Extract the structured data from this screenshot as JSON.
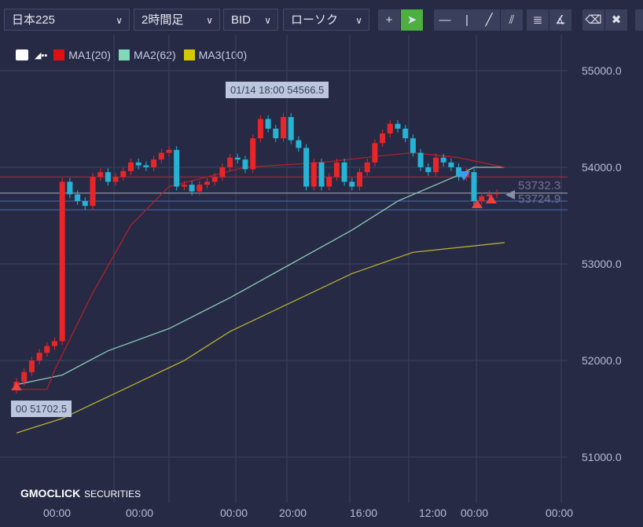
{
  "toolbar": {
    "symbol": "日本225",
    "timeframe": "2時間足",
    "price_type": "BID",
    "chart_type": "ローソク",
    "tools": [
      {
        "name": "crosshair-icon",
        "glyph": "+"
      },
      {
        "name": "pointer-icon",
        "glyph": "➤",
        "active": true
      },
      {
        "name": "horizontal-line-icon",
        "glyph": "—"
      },
      {
        "name": "vertical-line-icon",
        "glyph": "|"
      },
      {
        "name": "trend-line-icon",
        "glyph": "╱"
      },
      {
        "name": "parallel-lines-icon",
        "glyph": "⫽"
      },
      {
        "name": "fibonacci-retracement-icon",
        "glyph": "≣"
      },
      {
        "name": "fibonacci-fan-icon",
        "glyph": "∡"
      },
      {
        "name": "eraser-icon",
        "glyph": "⌫"
      },
      {
        "name": "delete-all-icon",
        "glyph": "✖"
      }
    ]
  },
  "legend": [
    {
      "label": "MA1(20)",
      "color": "#e01010"
    },
    {
      "label": "MA2(62)",
      "color": "#80d8b8"
    },
    {
      "label": "MA3(100)",
      "color": "#d4c800"
    }
  ],
  "colors": {
    "up": "#e8262a",
    "down": "#26b3d4",
    "ma1": "#b0202a",
    "ma2": "#8ccab8",
    "ma3": "#b8b030"
  },
  "y_axis": [
    "55000.0",
    "54000.0",
    "53000.0",
    "52000.0",
    "51000.0"
  ],
  "x_axis": [
    "00:00",
    "00:00",
    "00:00",
    "20:00",
    "16:00",
    "12:00",
    "00:00",
    "00:00"
  ],
  "tooltips": {
    "high": "01/14 18:00 54566.5",
    "low": "00 51702.5"
  },
  "price_labels": [
    "53732.3",
    "53724.9"
  ],
  "lines": {
    "red": 53900,
    "grey": 53732.3,
    "blue1": 53650,
    "blue2": 53560
  },
  "candles_close": [
    51780,
    51880,
    52000,
    52080,
    52150,
    52200,
    53850,
    53720,
    53650,
    53600,
    53900,
    53950,
    53850,
    53900,
    53960,
    54050,
    54020,
    54000,
    54080,
    54150,
    54180,
    53800,
    53820,
    53750,
    53820,
    53850,
    53900,
    54000,
    54100,
    54080,
    53980,
    54300,
    54500,
    54400,
    54300,
    54520,
    54280,
    54200,
    53800,
    54050,
    53800,
    53900,
    54050,
    53850,
    53800,
    53950,
    54050,
    54250,
    54350,
    54450,
    54400,
    54300,
    54150,
    54000,
    53950,
    54100,
    54050,
    54000,
    53900,
    53950,
    53650,
    53700,
    53720,
    53732
  ],
  "ma1": [
    [
      0,
      51700
    ],
    [
      4,
      51700
    ],
    [
      5,
      51900
    ],
    [
      10,
      52700
    ],
    [
      15,
      53400
    ],
    [
      20,
      53800
    ],
    [
      30,
      54000
    ],
    [
      40,
      54050
    ],
    [
      48,
      54120
    ],
    [
      52,
      54150
    ],
    [
      58,
      54100
    ],
    [
      64,
      54000
    ]
  ],
  "ma2": [
    [
      0,
      51750
    ],
    [
      6,
      51850
    ],
    [
      12,
      52100
    ],
    [
      20,
      52330
    ],
    [
      28,
      52650
    ],
    [
      36,
      53000
    ],
    [
      44,
      53350
    ],
    [
      50,
      53650
    ],
    [
      58,
      53920
    ],
    [
      60,
      54000
    ],
    [
      64,
      54000
    ]
  ],
  "ma3": [
    [
      0,
      51250
    ],
    [
      6,
      51400
    ],
    [
      14,
      51700
    ],
    [
      22,
      52000
    ],
    [
      28,
      52300
    ],
    [
      36,
      52600
    ],
    [
      44,
      52900
    ],
    [
      52,
      53120
    ],
    [
      64,
      53220
    ]
  ],
  "logo": {
    "brand": "GMOCLICK",
    "suffix": "SECURITIES"
  }
}
